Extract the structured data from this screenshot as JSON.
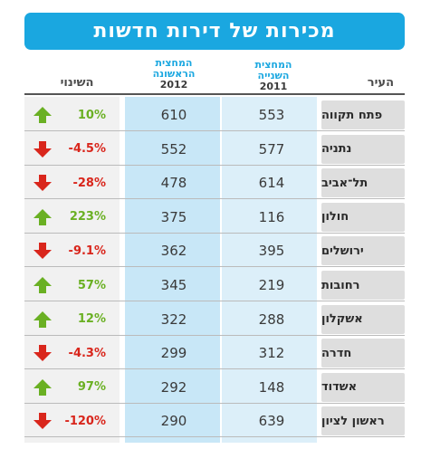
{
  "title": "מכירות של דירות חדשות",
  "headers": {
    "city": "העיר",
    "half2_line1": "המחצית",
    "half2_line2": "השנייה",
    "half2_year": "2011",
    "half1_line1": "המחצית",
    "half1_line2": "הראשונה",
    "half1_year": "2012",
    "change": "השינוי"
  },
  "colors": {
    "banner": "#1aa7e0",
    "up": "#6ab023",
    "down": "#d9261c"
  },
  "rows": [
    {
      "city": "פתח תקווה",
      "h2_2011": "553",
      "h1_2012": "610",
      "change": "10%",
      "direction": "up"
    },
    {
      "city": "נתניה",
      "h2_2011": "577",
      "h1_2012": "552",
      "change": "-4.5%",
      "direction": "down"
    },
    {
      "city": "תל־אביב",
      "h2_2011": "614",
      "h1_2012": "478",
      "change": "-28%",
      "direction": "down"
    },
    {
      "city": "חולון",
      "h2_2011": "116",
      "h1_2012": "375",
      "change": "223%",
      "direction": "up"
    },
    {
      "city": "ירושלים",
      "h2_2011": "395",
      "h1_2012": "362",
      "change": "-9.1%",
      "direction": "down"
    },
    {
      "city": "רחובות",
      "h2_2011": "219",
      "h1_2012": "345",
      "change": "57%",
      "direction": "up"
    },
    {
      "city": "אשקלון",
      "h2_2011": "288",
      "h1_2012": "322",
      "change": "12%",
      "direction": "up"
    },
    {
      "city": "חדרה",
      "h2_2011": "312",
      "h1_2012": "299",
      "change": "-4.3%",
      "direction": "down"
    },
    {
      "city": "אשדוד",
      "h2_2011": "148",
      "h1_2012": "292",
      "change": "97%",
      "direction": "up"
    },
    {
      "city": "ראשון לציון",
      "h2_2011": "639",
      "h1_2012": "290",
      "change": "-120%",
      "direction": "down"
    }
  ]
}
